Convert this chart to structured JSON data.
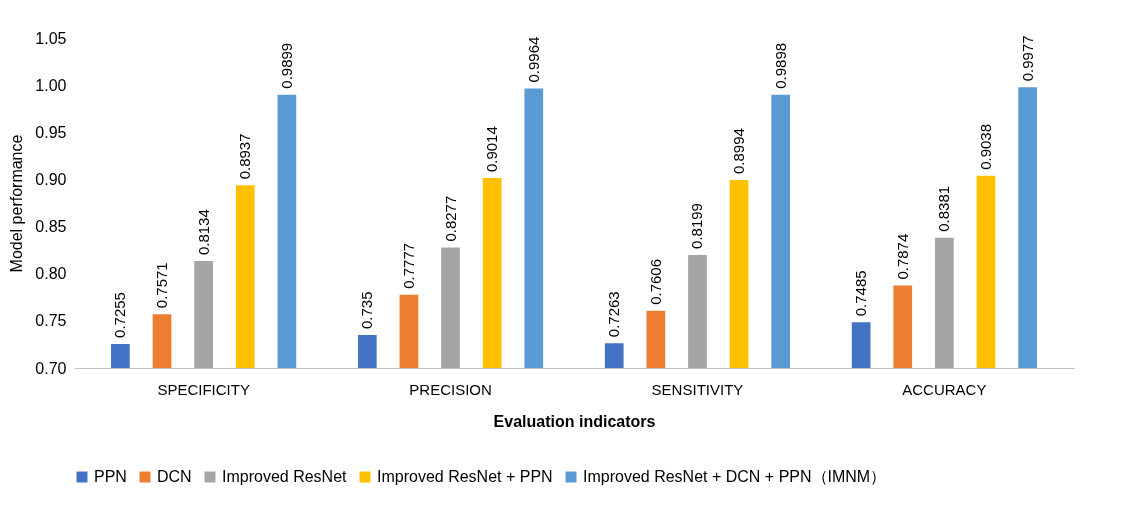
{
  "chart_data": {
    "type": "bar",
    "xlabel": "Evaluation indicators",
    "ylabel": "Model performance",
    "categories": [
      "SPECIFICITY",
      "PRECISION",
      "SENSITIVITY",
      "ACCURACY"
    ],
    "series": [
      {
        "name": "PPN",
        "color": "#4472c4",
        "values": [
          0.7255,
          0.735,
          0.7263,
          0.7485
        ]
      },
      {
        "name": "DCN",
        "color": "#ed7d31",
        "values": [
          0.7571,
          0.7777,
          0.7606,
          0.7874
        ]
      },
      {
        "name": "Improved ResNet",
        "color": "#a5a5a5",
        "values": [
          0.8134,
          0.8277,
          0.8199,
          0.8381
        ]
      },
      {
        "name": "Improved ResNet + PPN",
        "color": "#ffc000",
        "values": [
          0.8937,
          0.9014,
          0.8994,
          0.9038
        ]
      },
      {
        "name": "Improved ResNet + DCN + PPN（IMNM）",
        "color": "#5b9bd5",
        "values": [
          0.9899,
          0.9964,
          0.9898,
          0.9977
        ]
      }
    ],
    "ylim": [
      0.7,
      1.05
    ],
    "yticks": [
      {
        "value": 0.7,
        "label": "0.70"
      },
      {
        "value": 0.75,
        "label": "0.75"
      },
      {
        "value": 0.8,
        "label": "0.80"
      },
      {
        "value": 0.85,
        "label": "0.85"
      },
      {
        "value": 0.9,
        "label": "0.90"
      },
      {
        "value": 0.95,
        "label": "0.95"
      },
      {
        "value": 1.0,
        "label": "1.00"
      },
      {
        "value": 1.05,
        "label": "1.05"
      }
    ],
    "data_labels": true,
    "legend": "bottom",
    "grid": false
  }
}
